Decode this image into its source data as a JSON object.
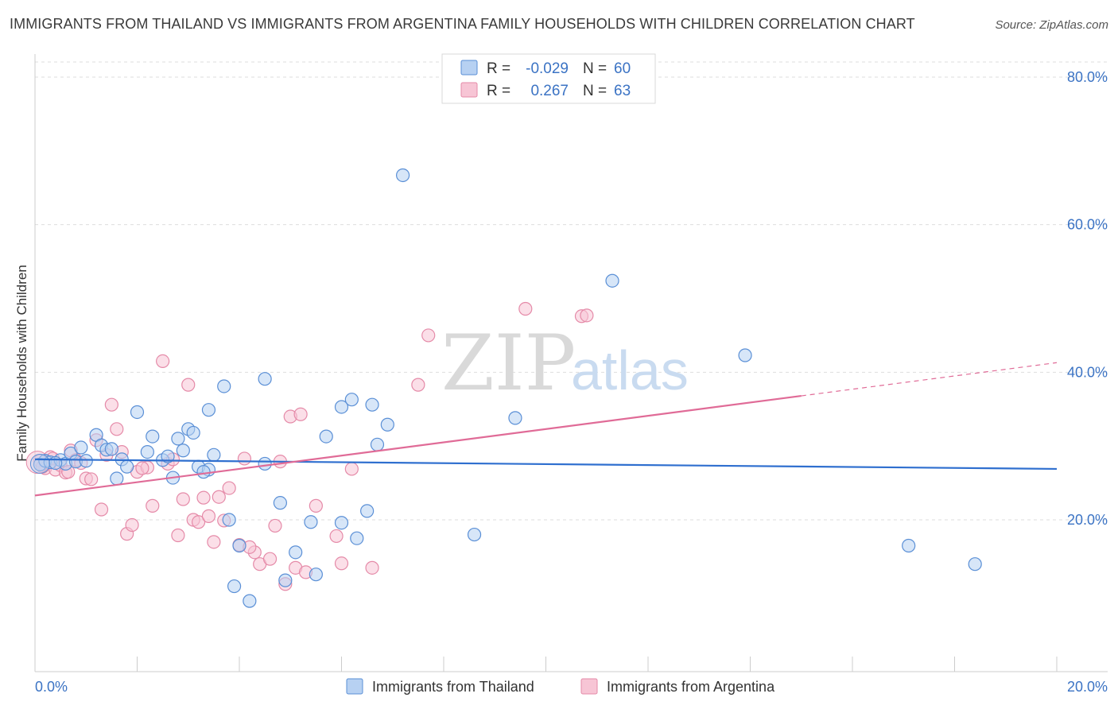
{
  "title": "IMMIGRANTS FROM THAILAND VS IMMIGRANTS FROM ARGENTINA FAMILY HOUSEHOLDS WITH CHILDREN CORRELATION CHART",
  "source": "Source: ZipAtlas.com",
  "watermark": {
    "zip": "ZIP",
    "atlas": "atlas"
  },
  "legend": {
    "thailand": {
      "r_label": "R =",
      "r_value": "-0.029",
      "n_label": "N =",
      "n_value": "60"
    },
    "argentina": {
      "r_label": "R =",
      "r_value": "0.267",
      "n_label": "N =",
      "n_value": "63"
    }
  },
  "colors": {
    "thailand_fill": "#b7d1f2",
    "thailand_stroke": "#5a8fd6",
    "thailand_line": "#2f6fcf",
    "argentina_fill": "#f7c5d5",
    "argentina_stroke": "#e58aa8",
    "argentina_line": "#e06b97",
    "grid": "#dddddd",
    "tick_text": "#3b73c4"
  },
  "chart_data": {
    "type": "scatter",
    "title": "IMMIGRANTS FROM THAILAND VS IMMIGRANTS FROM ARGENTINA FAMILY HOUSEHOLDS WITH CHILDREN CORRELATION CHART",
    "xlabel": "",
    "ylabel": "Family Households with Children",
    "xlim": [
      0,
      20
    ],
    "ylim": [
      0,
      82
    ],
    "x_tick_labels": {
      "left": "0.0%",
      "right": "20.0%"
    },
    "y_ticks": [
      {
        "value": 80,
        "label": "80.0%"
      },
      {
        "value": 60,
        "label": "60.0%"
      },
      {
        "value": 40,
        "label": "40.0%"
      },
      {
        "value": 20,
        "label": "20.0%"
      }
    ],
    "grid": true,
    "legend_position": "top-center",
    "series": [
      {
        "name": "Immigrants from Thailand",
        "trend": {
          "x": [
            0,
            20
          ],
          "y": [
            28.2,
            26.9
          ],
          "solid_until": 20
        },
        "points": [
          [
            0.1,
            27.5
          ],
          [
            0.2,
            28.0
          ],
          [
            0.3,
            27.8
          ],
          [
            0.5,
            28.1
          ],
          [
            0.6,
            27.6
          ],
          [
            0.7,
            29.0
          ],
          [
            0.9,
            29.8
          ],
          [
            0.8,
            27.9
          ],
          [
            1.2,
            31.5
          ],
          [
            1.3,
            30.1
          ],
          [
            1.4,
            29.5
          ],
          [
            1.6,
            25.6
          ],
          [
            1.7,
            28.2
          ],
          [
            1.8,
            27.2
          ],
          [
            2.0,
            34.6
          ],
          [
            2.2,
            29.2
          ],
          [
            2.3,
            31.3
          ],
          [
            2.5,
            28.1
          ],
          [
            2.6,
            28.6
          ],
          [
            2.7,
            25.7
          ],
          [
            2.8,
            31.0
          ],
          [
            2.9,
            29.4
          ],
          [
            3.0,
            32.3
          ],
          [
            3.1,
            31.8
          ],
          [
            3.2,
            27.2
          ],
          [
            3.4,
            34.9
          ],
          [
            3.4,
            26.8
          ],
          [
            3.5,
            28.8
          ],
          [
            3.7,
            38.1
          ],
          [
            3.8,
            20.0
          ],
          [
            3.9,
            11.0
          ],
          [
            4.0,
            16.5
          ],
          [
            4.2,
            9.0
          ],
          [
            4.5,
            27.6
          ],
          [
            4.5,
            39.1
          ],
          [
            4.8,
            22.3
          ],
          [
            4.9,
            11.8
          ],
          [
            5.1,
            15.6
          ],
          [
            5.4,
            19.7
          ],
          [
            5.5,
            12.6
          ],
          [
            5.7,
            31.3
          ],
          [
            6.0,
            35.3
          ],
          [
            6.0,
            19.6
          ],
          [
            6.2,
            36.3
          ],
          [
            6.3,
            17.5
          ],
          [
            6.5,
            21.2
          ],
          [
            6.6,
            35.6
          ],
          [
            6.7,
            30.2
          ],
          [
            6.9,
            32.9
          ],
          [
            7.2,
            66.7
          ],
          [
            8.6,
            18.0
          ],
          [
            9.4,
            33.8
          ],
          [
            11.3,
            52.4
          ],
          [
            13.9,
            42.3
          ],
          [
            17.1,
            16.5
          ],
          [
            18.4,
            14.0
          ],
          [
            0.4,
            27.7
          ],
          [
            1.0,
            28.0
          ],
          [
            1.5,
            29.6
          ],
          [
            3.3,
            26.5
          ]
        ]
      },
      {
        "name": "Immigrants from Argentina",
        "trend": {
          "x": [
            0,
            20
          ],
          "y": [
            23.3,
            41.3
          ],
          "solid_until": 15
        },
        "points": [
          [
            0.1,
            28.0
          ],
          [
            0.2,
            27.0
          ],
          [
            0.3,
            28.5
          ],
          [
            0.4,
            26.8
          ],
          [
            0.5,
            27.4
          ],
          [
            0.6,
            26.4
          ],
          [
            0.7,
            29.4
          ],
          [
            0.8,
            28.1
          ],
          [
            0.9,
            27.7
          ],
          [
            1.0,
            25.6
          ],
          [
            1.1,
            25.5
          ],
          [
            1.2,
            30.8
          ],
          [
            1.3,
            21.4
          ],
          [
            1.5,
            35.6
          ],
          [
            1.6,
            32.3
          ],
          [
            1.7,
            29.2
          ],
          [
            1.8,
            18.1
          ],
          [
            1.9,
            19.3
          ],
          [
            2.0,
            26.5
          ],
          [
            2.2,
            27.1
          ],
          [
            2.3,
            21.9
          ],
          [
            2.5,
            41.5
          ],
          [
            2.6,
            27.6
          ],
          [
            2.7,
            28.2
          ],
          [
            2.8,
            17.9
          ],
          [
            2.9,
            22.8
          ],
          [
            3.0,
            38.3
          ],
          [
            3.1,
            20.0
          ],
          [
            3.2,
            19.7
          ],
          [
            3.3,
            23.0
          ],
          [
            3.5,
            17.0
          ],
          [
            3.6,
            23.1
          ],
          [
            3.7,
            19.9
          ],
          [
            3.8,
            24.3
          ],
          [
            4.0,
            16.6
          ],
          [
            4.1,
            28.3
          ],
          [
            4.3,
            15.6
          ],
          [
            4.4,
            14.0
          ],
          [
            4.6,
            14.7
          ],
          [
            4.7,
            19.2
          ],
          [
            4.8,
            27.9
          ],
          [
            4.9,
            11.3
          ],
          [
            5.0,
            34.0
          ],
          [
            5.1,
            13.5
          ],
          [
            5.2,
            34.3
          ],
          [
            5.5,
            21.9
          ],
          [
            5.9,
            17.8
          ],
          [
            6.0,
            14.1
          ],
          [
            6.2,
            26.9
          ],
          [
            6.6,
            13.5
          ],
          [
            7.5,
            38.3
          ],
          [
            7.7,
            45.0
          ],
          [
            9.6,
            48.6
          ],
          [
            10.7,
            47.6
          ],
          [
            10.8,
            47.7
          ],
          [
            0.15,
            27.2
          ],
          [
            0.35,
            28.3
          ],
          [
            0.65,
            26.5
          ],
          [
            1.4,
            28.8
          ],
          [
            2.1,
            27.0
          ],
          [
            3.4,
            20.5
          ],
          [
            4.2,
            16.3
          ],
          [
            5.3,
            12.9
          ]
        ]
      }
    ]
  },
  "bottom_legend": {
    "thailand": "Immigrants from Thailand",
    "argentina": "Immigrants from Argentina"
  }
}
